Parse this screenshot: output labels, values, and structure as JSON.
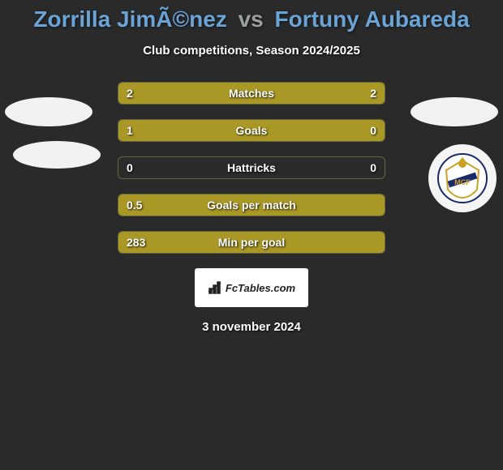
{
  "title": {
    "player1": "Zorrilla JimÃ©nez",
    "vs": "vs",
    "player2": "Fortuny Aubareda",
    "color1": "#6aa3d6",
    "color2": "#6aa3d6",
    "vs_color": "#9aa0a0"
  },
  "subtitle": "Club competitions, Season 2024/2025",
  "bar_colors": {
    "left": "#a99726",
    "right": "#a99726",
    "empty": "transparent"
  },
  "stats": [
    {
      "label": "Matches",
      "left_val": "2",
      "right_val": "2",
      "left_pct": 50,
      "right_pct": 50
    },
    {
      "label": "Goals",
      "left_val": "1",
      "right_val": "0",
      "left_pct": 80,
      "right_pct": 20
    },
    {
      "label": "Hattricks",
      "left_val": "0",
      "right_val": "0",
      "left_pct": 0,
      "right_pct": 0
    },
    {
      "label": "Goals per match",
      "left_val": "0.5",
      "right_val": "",
      "left_pct": 100,
      "right_pct": 0
    },
    {
      "label": "Min per goal",
      "left_val": "283",
      "right_val": "",
      "left_pct": 100,
      "right_pct": 0
    }
  ],
  "brand": "FcTables.com",
  "date": "3 november 2024",
  "background": "#2a2a2a"
}
